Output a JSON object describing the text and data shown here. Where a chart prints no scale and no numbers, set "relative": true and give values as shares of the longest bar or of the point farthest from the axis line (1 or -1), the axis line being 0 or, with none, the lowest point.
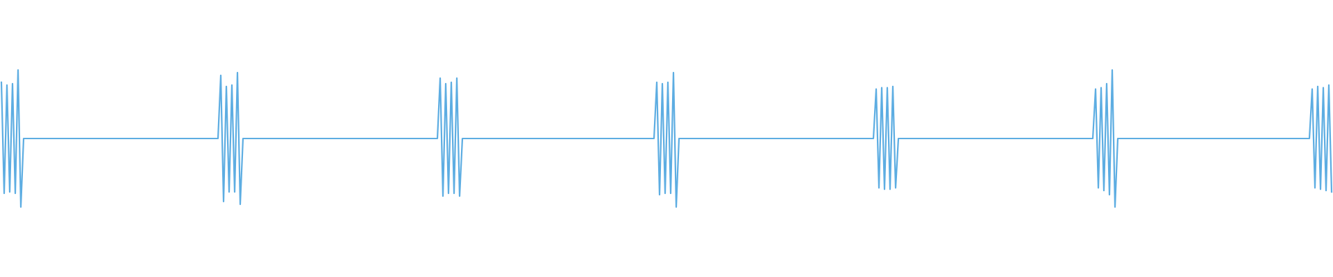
{
  "chart_data": {
    "type": "line",
    "relative": true,
    "categories": [
      null,
      null,
      null,
      null,
      null,
      null,
      null,
      null,
      null,
      null,
      null,
      null,
      null,
      null,
      null,
      null,
      null,
      null,
      null,
      null,
      null,
      null,
      null,
      null,
      null,
      null,
      null,
      null,
      null,
      null,
      null,
      null,
      null,
      null,
      null,
      null,
      null,
      null,
      null,
      null,
      null,
      null,
      null,
      null,
      null,
      null,
      null,
      null,
      null,
      null,
      null,
      null,
      null,
      null,
      null,
      null,
      null,
      null,
      null,
      null,
      null,
      null,
      null,
      null,
      null,
      null,
      null,
      null,
      null,
      null,
      null,
      null,
      null,
      null,
      null,
      null,
      null,
      null,
      null,
      null,
      null,
      null,
      null,
      null,
      null,
      null,
      null,
      null,
      null,
      null,
      null,
      null,
      null,
      null,
      null,
      null,
      null,
      null,
      null,
      null,
      null,
      null,
      null,
      null,
      null,
      null,
      null,
      null,
      null,
      null,
      null,
      null,
      null,
      null,
      null,
      null,
      null,
      null,
      null,
      null,
      null,
      null,
      null,
      null,
      null,
      null,
      null,
      null,
      null,
      null,
      null,
      null,
      null,
      null,
      null,
      null,
      null,
      null,
      null,
      null,
      null,
      null,
      null,
      null,
      null,
      null,
      null,
      null,
      null,
      null,
      null,
      null,
      null,
      null,
      null,
      null,
      null,
      null,
      null,
      null,
      null,
      null,
      null,
      null,
      null,
      null,
      null,
      null,
      null,
      null,
      null,
      null,
      null,
      null,
      null,
      null,
      null,
      null,
      null,
      null,
      null,
      null,
      null,
      null,
      null,
      null,
      null,
      null,
      null,
      null,
      null,
      null,
      null,
      null,
      null,
      null,
      null,
      null,
      null,
      null,
      null,
      null,
      null,
      null,
      null,
      null,
      null,
      null,
      null,
      null,
      null,
      null,
      null,
      null,
      null,
      null,
      null,
      null,
      null,
      null,
      null,
      null,
      null,
      null,
      null,
      null,
      null,
      null,
      null,
      null,
      null,
      null,
      null,
      null,
      null,
      null,
      null,
      null,
      null,
      null,
      null,
      null,
      null,
      null,
      null,
      null,
      null,
      null,
      null,
      null,
      null,
      null,
      null,
      null,
      null,
      null,
      null,
      null,
      null,
      null,
      null,
      null,
      null,
      null,
      null,
      null,
      null,
      null,
      null,
      null,
      null,
      null,
      null,
      null,
      null,
      null,
      null,
      null,
      null,
      null,
      null,
      null,
      null,
      null,
      null,
      null,
      null,
      null,
      null,
      null,
      null,
      null,
      null,
      null,
      null,
      null,
      null,
      null,
      null,
      null,
      null,
      null,
      null,
      null,
      null,
      null,
      null,
      null,
      null,
      null,
      null,
      null,
      null,
      null,
      null,
      null,
      null,
      null,
      null,
      null,
      null,
      null,
      null,
      null,
      null,
      null,
      null,
      null,
      null,
      null,
      null,
      null,
      null,
      null,
      null,
      null,
      null,
      null,
      null,
      null,
      null,
      null,
      null,
      null,
      null,
      null,
      null,
      null,
      null,
      null,
      null,
      null,
      null,
      null,
      null,
      null,
      null,
      null,
      null,
      null,
      null,
      null,
      null,
      null,
      null,
      null,
      null,
      null,
      null,
      null,
      null,
      null,
      null,
      null,
      null,
      null,
      null,
      null,
      null,
      null,
      null,
      null,
      null,
      null,
      null,
      null,
      null,
      null,
      null,
      null,
      null,
      null,
      null,
      null,
      null,
      null,
      null,
      null,
      null,
      null,
      null,
      null,
      null,
      null,
      null,
      null,
      null,
      null,
      null,
      null,
      null,
      null,
      null,
      null,
      null,
      null,
      null,
      null,
      null,
      null,
      null,
      null,
      null,
      null,
      null,
      null,
      null,
      null,
      null,
      null,
      null,
      null,
      null,
      null,
      null,
      null,
      null,
      null,
      null,
      null,
      null,
      null,
      null,
      null,
      null,
      null,
      null,
      null,
      null,
      null,
      null,
      null,
      null,
      null,
      null,
      null,
      null,
      null,
      null,
      null,
      null,
      null,
      null,
      null,
      null,
      null,
      null,
      null,
      null,
      null,
      null,
      null,
      null,
      null,
      null,
      null,
      null,
      null,
      null,
      null
    ],
    "series": [
      {
        "color": "#5dade2",
        "values": [
          0.91,
          0.1,
          0.89,
          0.11,
          0.9,
          0.1,
          1,
          0,
          0.5,
          0.5,
          0.5,
          0.5,
          0.5,
          0.5,
          0.5,
          0.5,
          0.5,
          0.5,
          0.5,
          0.5,
          0.5,
          0.5,
          0.5,
          0.5,
          0.5,
          0.5,
          0.5,
          0.5,
          0.5,
          0.5,
          0.5,
          0.5,
          0.5,
          0.5,
          0.5,
          0.5,
          0.5,
          0.5,
          0.5,
          0.5,
          0.5,
          0.5,
          0.5,
          0.5,
          0.5,
          0.5,
          0.5,
          0.5,
          0.5,
          0.5,
          0.5,
          0.5,
          0.5,
          0.5,
          0.5,
          0.5,
          0.5,
          0.5,
          0.5,
          0.5,
          0.5,
          0.5,
          0.5,
          0.5,
          0.5,
          0.5,
          0.5,
          0.5,
          0.5,
          0.5,
          0.5,
          0.5,
          0.5,
          0.5,
          0.5,
          0.5,
          0.5,
          0.5,
          0.5,
          0.96,
          0.04,
          0.88,
          0.11,
          0.89,
          0.11,
          0.98,
          0.02,
          0.5,
          0.5,
          0.5,
          0.5,
          0.5,
          0.5,
          0.5,
          0.5,
          0.5,
          0.5,
          0.5,
          0.5,
          0.5,
          0.5,
          0.5,
          0.5,
          0.5,
          0.5,
          0.5,
          0.5,
          0.5,
          0.5,
          0.5,
          0.5,
          0.5,
          0.5,
          0.5,
          0.5,
          0.5,
          0.5,
          0.5,
          0.5,
          0.5,
          0.5,
          0.5,
          0.5,
          0.5,
          0.5,
          0.5,
          0.5,
          0.5,
          0.5,
          0.5,
          0.5,
          0.5,
          0.5,
          0.5,
          0.5,
          0.5,
          0.5,
          0.5,
          0.5,
          0.5,
          0.5,
          0.5,
          0.5,
          0.5,
          0.5,
          0.5,
          0.5,
          0.5,
          0.5,
          0.5,
          0.5,
          0.5,
          0.5,
          0.5,
          0.5,
          0.5,
          0.5,
          0.5,
          0.94,
          0.08,
          0.9,
          0.1,
          0.91,
          0.1,
          0.94,
          0.08,
          0.5,
          0.5,
          0.5,
          0.5,
          0.5,
          0.5,
          0.5,
          0.5,
          0.5,
          0.5,
          0.5,
          0.5,
          0.5,
          0.5,
          0.5,
          0.5,
          0.5,
          0.5,
          0.5,
          0.5,
          0.5,
          0.5,
          0.5,
          0.5,
          0.5,
          0.5,
          0.5,
          0.5,
          0.5,
          0.5,
          0.5,
          0.5,
          0.5,
          0.5,
          0.5,
          0.5,
          0.5,
          0.5,
          0.5,
          0.5,
          0.5,
          0.5,
          0.5,
          0.5,
          0.5,
          0.5,
          0.5,
          0.5,
          0.5,
          0.5,
          0.5,
          0.5,
          0.5,
          0.5,
          0.5,
          0.5,
          0.5,
          0.5,
          0.5,
          0.5,
          0.5,
          0.5,
          0.5,
          0.5,
          0.5,
          0.5,
          0.5,
          0.5,
          0.5,
          0.5,
          0.91,
          0.09,
          0.9,
          0.1,
          0.91,
          0.1,
          0.98,
          0,
          0.5,
          0.5,
          0.5,
          0.5,
          0.5,
          0.5,
          0.5,
          0.5,
          0.5,
          0.5,
          0.5,
          0.5,
          0.5,
          0.5,
          0.5,
          0.5,
          0.5,
          0.5,
          0.5,
          0.5,
          0.5,
          0.5,
          0.5,
          0.5,
          0.5,
          0.5,
          0.5,
          0.5,
          0.5,
          0.5,
          0.5,
          0.5,
          0.5,
          0.5,
          0.5,
          0.5,
          0.5,
          0.5,
          0.5,
          0.5,
          0.5,
          0.5,
          0.5,
          0.5,
          0.5,
          0.5,
          0.5,
          0.5,
          0.5,
          0.5,
          0.5,
          0.5,
          0.5,
          0.5,
          0.5,
          0.5,
          0.5,
          0.5,
          0.5,
          0.5,
          0.5,
          0.5,
          0.5,
          0.5,
          0.5,
          0.5,
          0.5,
          0.5,
          0.5,
          0.5,
          0.5,
          0.86,
          0.14,
          0.87,
          0.13,
          0.87,
          0.13,
          0.88,
          0.14,
          0.5,
          0.5,
          0.5,
          0.5,
          0.5,
          0.5,
          0.5,
          0.5,
          0.5,
          0.5,
          0.5,
          0.5,
          0.5,
          0.5,
          0.5,
          0.5,
          0.5,
          0.5,
          0.5,
          0.5,
          0.5,
          0.5,
          0.5,
          0.5,
          0.5,
          0.5,
          0.5,
          0.5,
          0.5,
          0.5,
          0.5,
          0.5,
          0.5,
          0.5,
          0.5,
          0.5,
          0.5,
          0.5,
          0.5,
          0.5,
          0.5,
          0.5,
          0.5,
          0.5,
          0.5,
          0.5,
          0.5,
          0.5,
          0.5,
          0.5,
          0.5,
          0.5,
          0.5,
          0.5,
          0.5,
          0.5,
          0.5,
          0.5,
          0.5,
          0.5,
          0.5,
          0.5,
          0.5,
          0.5,
          0.5,
          0.5,
          0.5,
          0.5,
          0.5,
          0.5,
          0.5,
          0.86,
          0.14,
          0.87,
          0.12,
          0.9,
          0.09,
          1,
          0,
          0.5,
          0.5,
          0.5,
          0.5,
          0.5,
          0.5,
          0.5,
          0.5,
          0.5,
          0.5,
          0.5,
          0.5,
          0.5,
          0.5,
          0.5,
          0.5,
          0.5,
          0.5,
          0.5,
          0.5,
          0.5,
          0.5,
          0.5,
          0.5,
          0.5,
          0.5,
          0.5,
          0.5,
          0.5,
          0.5,
          0.5,
          0.5,
          0.5,
          0.5,
          0.5,
          0.5,
          0.5,
          0.5,
          0.5,
          0.5,
          0.5,
          0.5,
          0.5,
          0.5,
          0.5,
          0.5,
          0.5,
          0.5,
          0.5,
          0.5,
          0.5,
          0.5,
          0.5,
          0.5,
          0.5,
          0.5,
          0.5,
          0.5,
          0.5,
          0.5,
          0.5,
          0.5,
          0.5,
          0.5,
          0.5,
          0.5,
          0.5,
          0.5,
          0.5,
          0.5,
          0.86,
          0.14,
          0.88,
          0.13,
          0.87,
          0.12,
          0.89,
          0.11
        ]
      }
    ]
  }
}
